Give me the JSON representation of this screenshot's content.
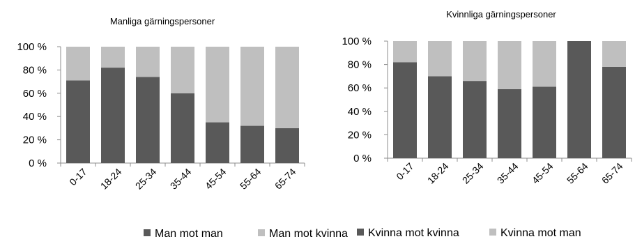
{
  "chart_data": [
    {
      "type": "bar",
      "stacked": true,
      "title": "Manliga gärningspersoner",
      "categories": [
        "0-17",
        "18-24",
        "25-34",
        "35-44",
        "45-54",
        "55-64",
        "65-74"
      ],
      "series": [
        {
          "name": "Man mot man",
          "values": [
            71,
            82,
            74,
            60,
            35,
            32,
            30
          ],
          "color": "#595959"
        },
        {
          "name": "Man mot kvinna",
          "values": [
            29,
            18,
            26,
            40,
            65,
            68,
            70
          ],
          "color": "#bfbfbf"
        }
      ],
      "yticks": [
        "0 %",
        "20 %",
        "40 %",
        "60 %",
        "80 %",
        "100 %"
      ],
      "ylim": [
        0,
        100
      ],
      "grid": false,
      "legend": "bottom"
    },
    {
      "type": "bar",
      "stacked": true,
      "title": "Kvinnliga gärningspersoner",
      "categories": [
        "0-17",
        "18-24",
        "25-34",
        "35-44",
        "45-54",
        "55-64",
        "65-74"
      ],
      "series": [
        {
          "name": "Kvinna mot kvinna",
          "values": [
            82,
            70,
            66,
            59,
            61,
            100,
            78
          ],
          "color": "#595959"
        },
        {
          "name": "Kvinna mot man",
          "values": [
            18,
            30,
            34,
            41,
            39,
            0,
            22
          ],
          "color": "#bfbfbf"
        }
      ],
      "yticks": [
        "0 %",
        "20 %",
        "40 %",
        "60 %",
        "80 %",
        "100 %"
      ],
      "ylim": [
        0,
        100
      ],
      "grid": false,
      "legend": "bottom"
    }
  ]
}
